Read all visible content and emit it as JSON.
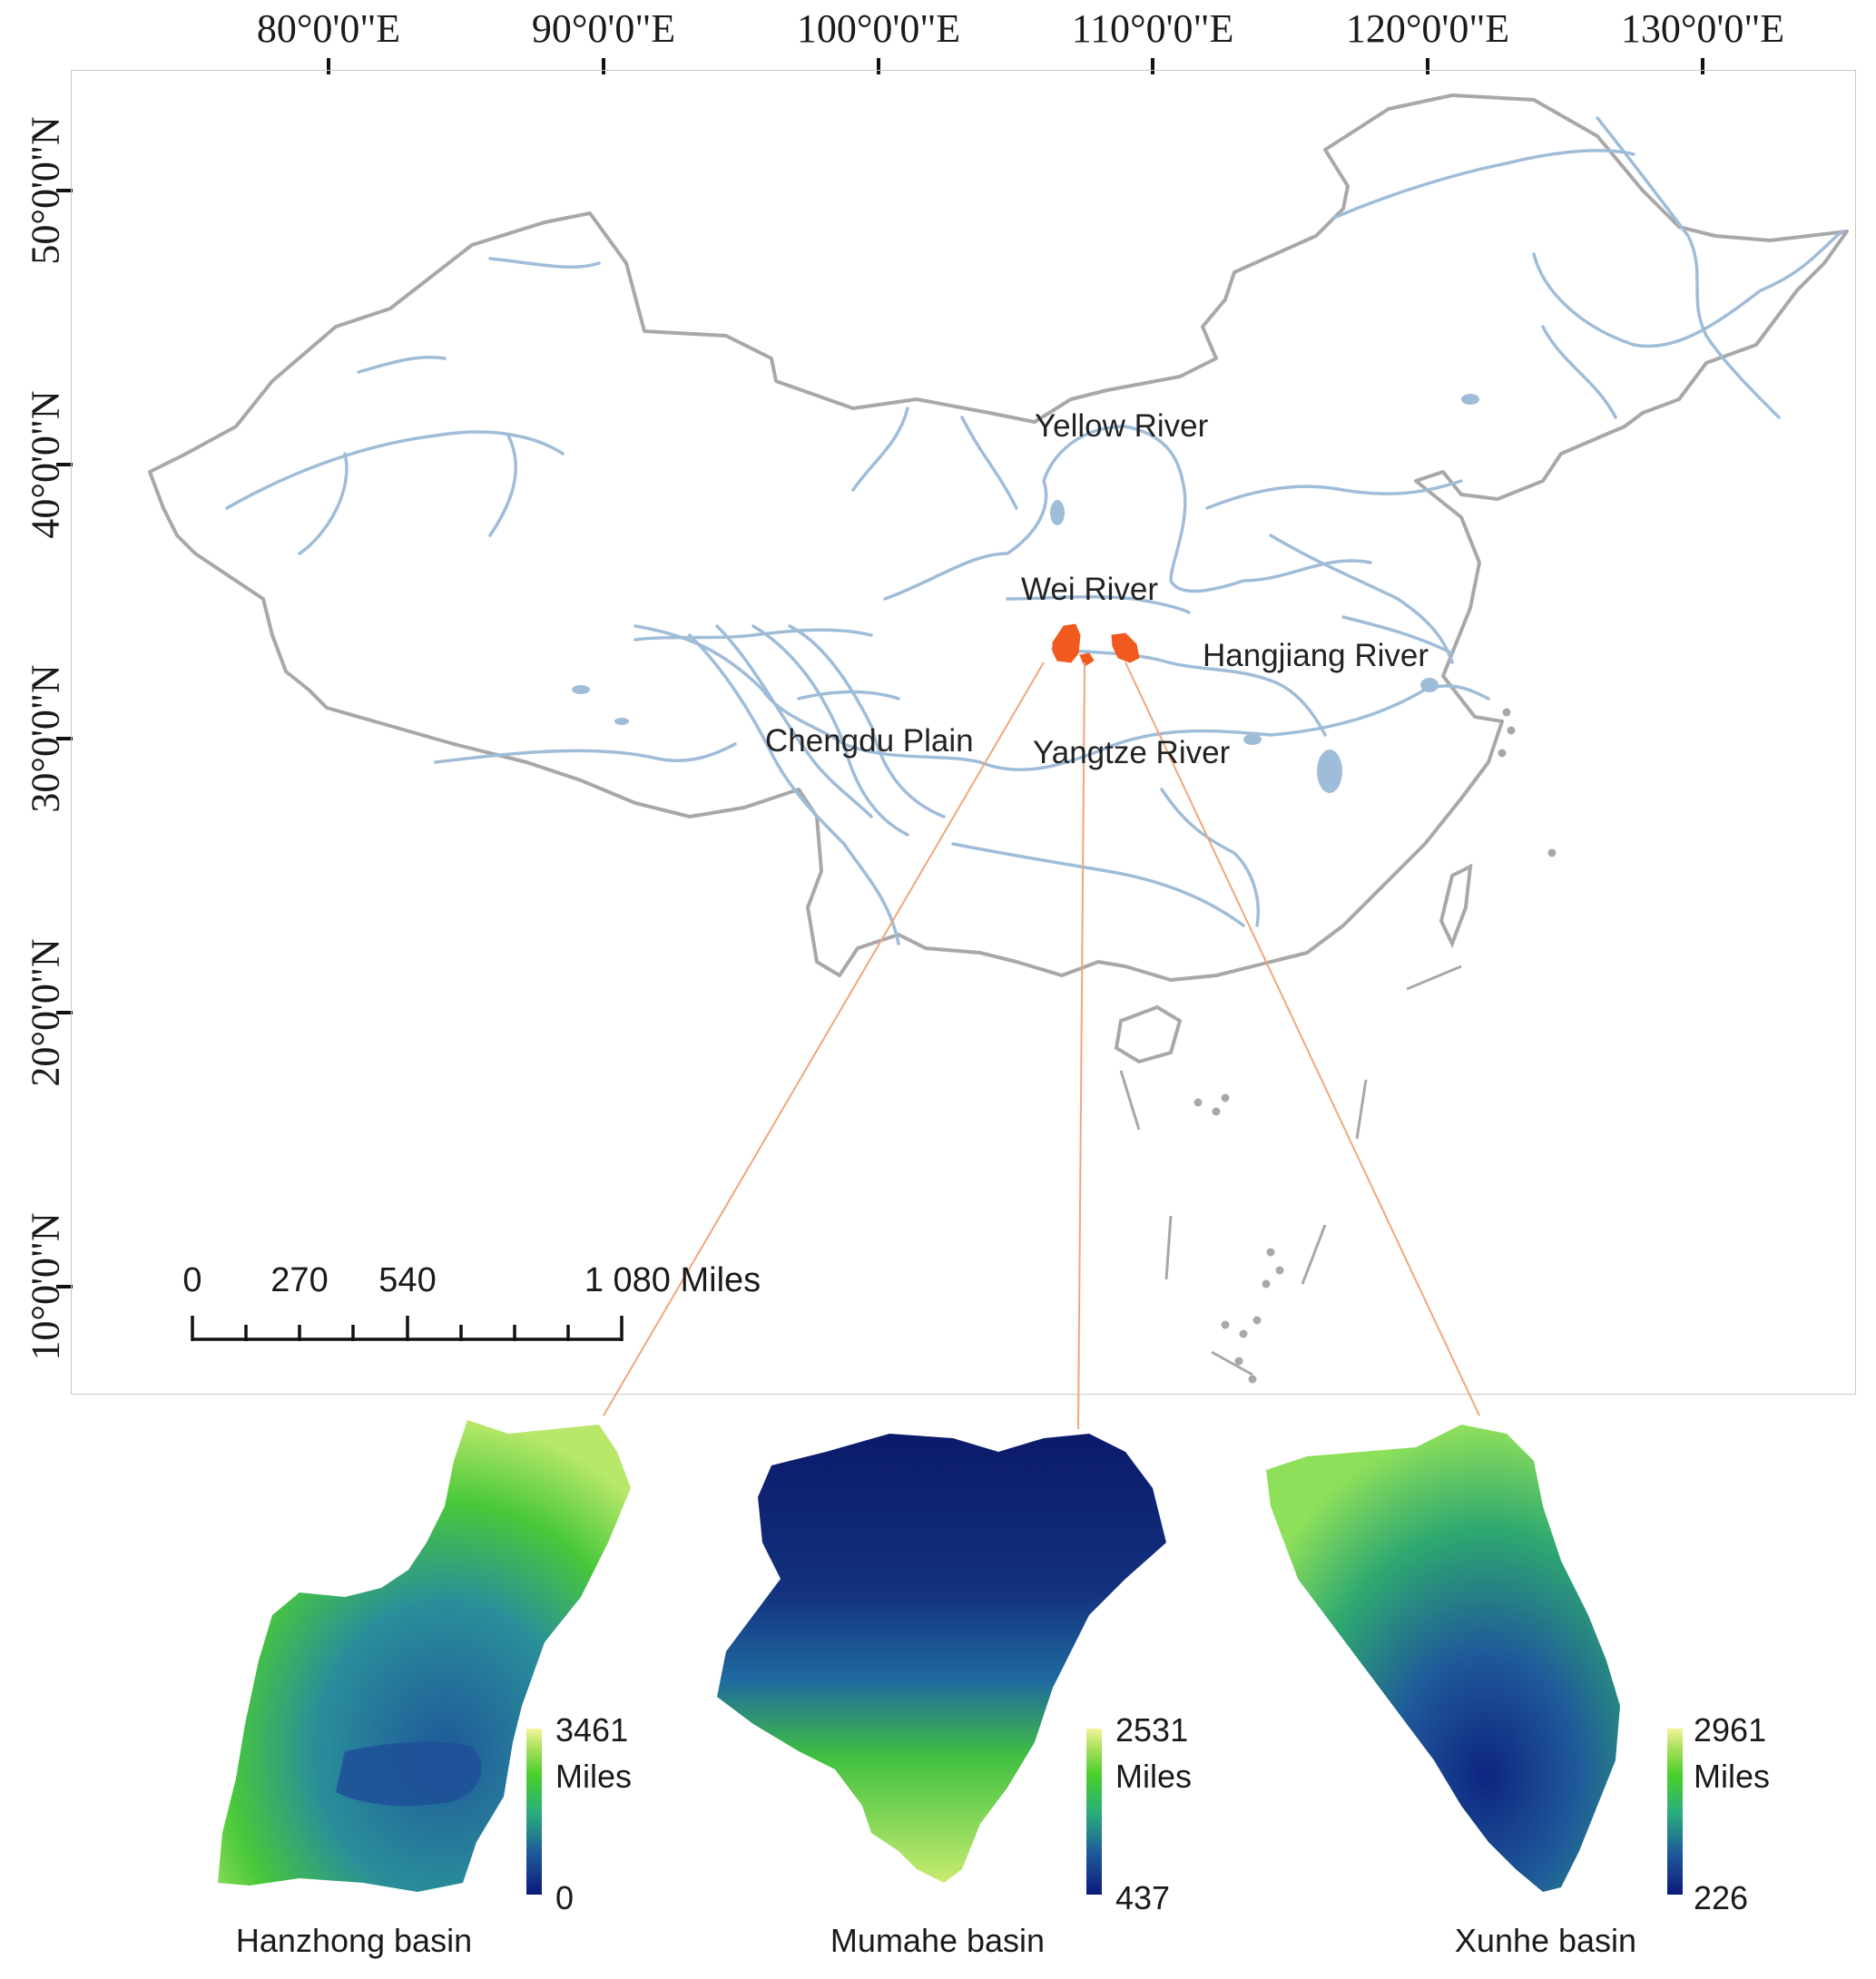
{
  "map": {
    "x_ticks": [
      "80°0'0\"E",
      "90°0'0\"E",
      "100°0'0\"E",
      "110°0'0\"E",
      "120°0'0\"E",
      "130°0'0\"E"
    ],
    "y_ticks": [
      "50°0'0\"N",
      "40°0'0\"N",
      "30°0'0\"N",
      "20°0'0\"N",
      "10°0'0\"N"
    ],
    "labels": {
      "yellow_river": "Yellow River",
      "wei_river": "Wei River",
      "hangjiang_river": "Hangjiang River",
      "chengdu_plain": "Chengdu Plain",
      "yangtze_river": "Yangtze River"
    },
    "scale_bar": {
      "ticks": [
        "0",
        "270",
        "540",
        "1 080 Miles"
      ]
    },
    "colors": {
      "border": "#a8a8a8",
      "rivers": "#9fbcd8",
      "basins": "#f05a1e",
      "leader_lines": "#f2a57e"
    }
  },
  "basins": [
    {
      "title": "Hanzhong basin",
      "legend_max": "3461",
      "legend_unit": "Miles",
      "legend_min": "0"
    },
    {
      "title": "Mumahe basin",
      "legend_max": "2531",
      "legend_unit": "Miles",
      "legend_min": "437"
    },
    {
      "title": "Xunhe basin",
      "legend_max": "2961",
      "legend_unit": "Miles",
      "legend_min": "226"
    }
  ],
  "colormap": [
    "#0b1a7a",
    "#1f5a9a",
    "#2ab07a",
    "#48d02a",
    "#a8e05a",
    "#f2f59a"
  ]
}
